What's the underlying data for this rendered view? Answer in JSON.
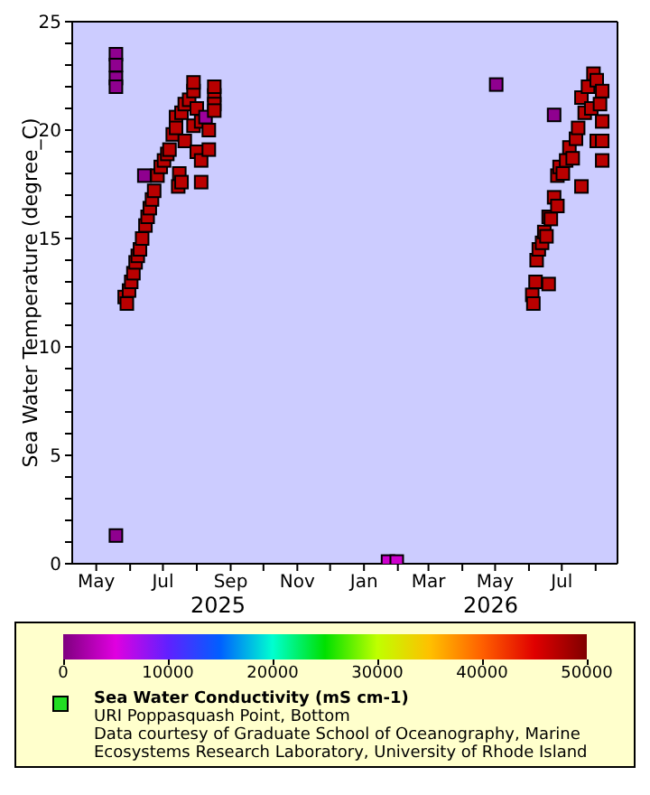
{
  "chart_data": {
    "type": "scatter",
    "ylabel": "Sea Water Temperature (degree_C)",
    "ylim": [
      0,
      25
    ],
    "yticks": [
      0,
      {
        "value": 1,
        "label": null
      },
      {
        "value": 2,
        "label": null
      },
      {
        "value": 3,
        "label": null
      },
      {
        "value": 4,
        "label": null
      },
      5,
      {
        "value": 6,
        "label": null
      },
      {
        "value": 7,
        "label": null
      },
      {
        "value": 8,
        "label": null
      },
      {
        "value": 9,
        "label": null
      },
      10,
      {
        "value": 11,
        "label": null
      },
      {
        "value": 12,
        "label": null
      },
      {
        "value": 13,
        "label": null
      },
      {
        "value": 14,
        "label": null
      },
      15,
      {
        "value": 16,
        "label": null
      },
      {
        "value": 17,
        "label": null
      },
      {
        "value": 18,
        "label": null
      },
      {
        "value": 19,
        "label": null
      },
      20,
      {
        "value": 21,
        "label": null
      },
      {
        "value": 22,
        "label": null
      },
      {
        "value": 23,
        "label": null
      },
      {
        "value": 24,
        "label": null
      },
      25
    ],
    "xlim": [
      "2025-04-09",
      "2026-08-21"
    ],
    "xticks": [
      {
        "value": "2025-05-01",
        "label": "May"
      },
      {
        "value": "2025-06-01",
        "label": null
      },
      {
        "value": "2025-07-01",
        "label": "Jul"
      },
      {
        "value": "2025-08-01",
        "label": null
      },
      {
        "value": "2025-09-01",
        "label": "Sep"
      },
      {
        "value": "2025-10-01",
        "label": null
      },
      {
        "value": "2025-11-01",
        "label": "Nov"
      },
      {
        "value": "2025-12-01",
        "label": null
      },
      {
        "value": "2026-01-01",
        "label": "Jan"
      },
      {
        "value": "2026-02-01",
        "label": null
      },
      {
        "value": "2026-03-01",
        "label": "Mar"
      },
      {
        "value": "2026-04-01",
        "label": null
      },
      {
        "value": "2026-05-01",
        "label": "May"
      },
      {
        "value": "2026-06-01",
        "label": null
      },
      {
        "value": "2026-07-01",
        "label": "Jul"
      },
      {
        "value": "2026-08-01",
        "label": null
      }
    ],
    "clim": [
      0,
      50000
    ],
    "cticks": [
      0,
      10000,
      20000,
      30000,
      40000,
      50000
    ],
    "marker": "square",
    "legend": "bottom",
    "series": [
      {
        "name": "Sea Water Conductivity (mS cm-1)",
        "x": [
          "2025-05-19",
          "2025-05-19",
          "2025-05-19",
          "2025-05-19",
          "2025-05-19",
          "2025-06-14",
          "2025-05-27",
          "2025-05-29",
          "2025-05-31",
          "2025-06-02",
          "2025-06-04",
          "2025-06-06",
          "2025-06-08",
          "2025-06-10",
          "2025-06-12",
          "2025-06-15",
          "2025-06-17",
          "2025-06-19",
          "2025-06-21",
          "2025-06-23",
          "2025-06-26",
          "2025-06-29",
          "2025-07-02",
          "2025-07-05",
          "2025-07-07",
          "2025-07-10",
          "2025-07-13",
          "2025-07-13",
          "2025-07-15",
          "2025-07-16",
          "2025-07-18",
          "2025-07-18",
          "2025-07-21",
          "2025-07-21",
          "2025-07-25",
          "2025-07-29",
          "2025-07-29",
          "2025-07-29",
          "2025-08-01",
          "2025-08-01",
          "2025-08-05",
          "2025-08-05",
          "2025-08-05",
          "2025-08-09",
          "2025-08-12",
          "2025-08-12",
          "2025-08-17",
          "2025-08-17",
          "2025-08-17",
          "2025-08-17",
          "2026-01-23",
          "2026-01-31",
          "2026-05-02",
          "2026-06-24",
          "2026-06-04",
          "2026-06-05",
          "2026-06-07",
          "2026-06-08",
          "2026-06-10",
          "2026-06-13",
          "2026-06-15",
          "2026-06-17",
          "2026-06-19",
          "2026-06-19",
          "2026-06-21",
          "2026-06-24",
          "2026-06-27",
          "2026-06-27",
          "2026-06-29",
          "2026-07-02",
          "2026-07-05",
          "2026-07-08",
          "2026-07-11",
          "2026-07-14",
          "2026-07-16",
          "2026-07-19",
          "2026-07-19",
          "2026-07-22",
          "2026-07-25",
          "2026-07-28",
          "2026-07-30",
          "2026-08-02",
          "2026-08-02",
          "2026-08-05",
          "2026-08-07",
          "2026-08-07",
          "2026-08-07",
          "2026-08-07"
        ],
        "values": [
          23.5,
          23.0,
          22.4,
          22.0,
          1.3,
          17.9,
          12.3,
          12.0,
          12.6,
          13.0,
          13.4,
          13.9,
          14.2,
          14.5,
          15.0,
          15.6,
          16.0,
          16.4,
          16.8,
          17.2,
          17.9,
          18.3,
          18.6,
          18.9,
          19.1,
          19.8,
          20.6,
          20.1,
          17.4,
          18.0,
          17.6,
          20.8,
          21.2,
          19.5,
          21.4,
          21.8,
          22.2,
          20.2,
          21.0,
          19.0,
          18.6,
          17.6,
          20.4,
          20.6,
          19.1,
          20.0,
          21.6,
          21.2,
          20.9,
          22.0,
          0.1,
          0.1,
          22.1,
          20.7,
          12.4,
          12.0,
          13.0,
          14.0,
          14.5,
          14.8,
          15.3,
          15.1,
          12.9,
          16.0,
          15.9,
          16.9,
          17.9,
          16.5,
          18.3,
          18.0,
          18.6,
          19.2,
          18.7,
          19.6,
          20.1,
          21.5,
          17.4,
          20.8,
          22.0,
          21.0,
          22.6,
          22.3,
          19.5,
          21.2,
          21.8,
          20.4,
          18.6,
          19.5
        ],
        "cvalues": [
          800,
          800,
          800,
          800,
          800,
          800,
          47000,
          47000,
          47000,
          47000,
          47000,
          47000,
          47000,
          47000,
          47000,
          47000,
          47000,
          47000,
          47000,
          47000,
          47000,
          47000,
          47000,
          47000,
          47000,
          47000,
          47000,
          47000,
          47000,
          47000,
          47000,
          47000,
          47000,
          47000,
          47000,
          47000,
          47000,
          47000,
          47000,
          47000,
          47000,
          47000,
          47000,
          1500,
          47000,
          47000,
          47000,
          47000,
          47000,
          47000,
          4000,
          4000,
          800,
          800,
          47000,
          47000,
          47000,
          47000,
          47000,
          47000,
          47000,
          47000,
          47000,
          47000,
          47000,
          47000,
          47000,
          47000,
          47000,
          47000,
          47000,
          47000,
          47000,
          47000,
          47000,
          47000,
          47000,
          47000,
          47000,
          47000,
          47000,
          47000,
          47000,
          47000,
          47000,
          47000,
          47000,
          47000
        ]
      }
    ],
    "annotations": [
      "2025",
      "2026",
      "URI Poppasquash Point, Bottom",
      "Data courtesy of Graduate School of Oceanography, Marine Ecosystems Research Laboratory, University of Rhode Island"
    ]
  }
}
